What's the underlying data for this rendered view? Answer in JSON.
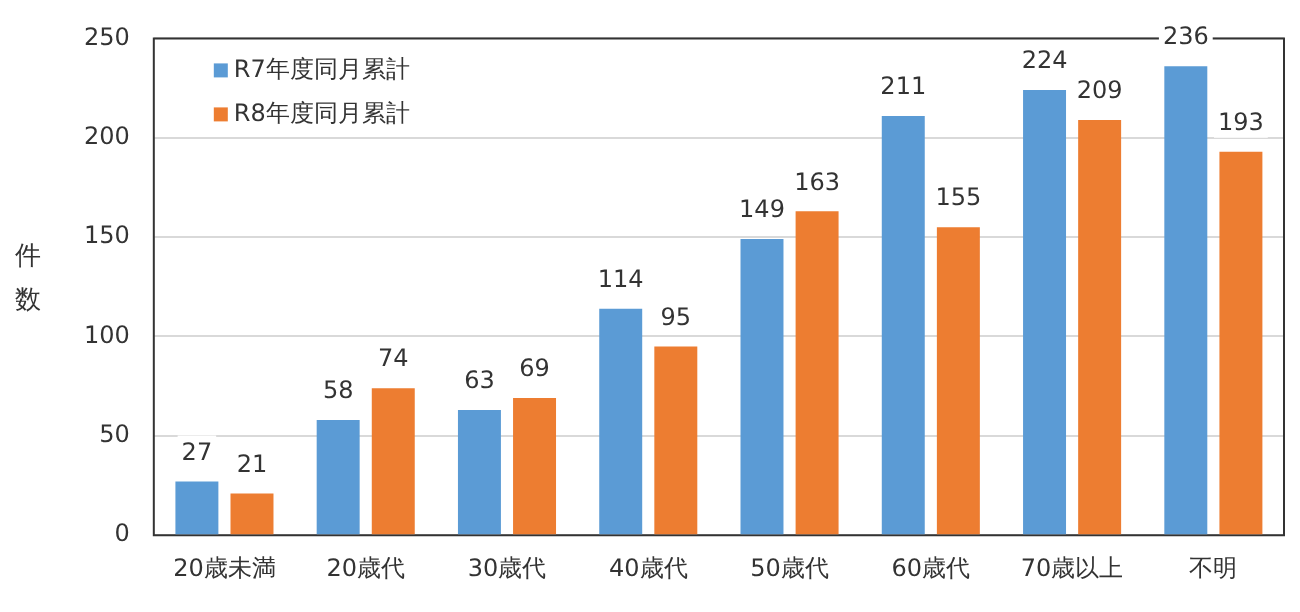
{
  "chart_data": {
    "type": "bar",
    "ylabel": "件数",
    "categories": [
      "20歳未満",
      "20歳代",
      "30歳代",
      "40歳代",
      "50歳代",
      "60歳代",
      "70歳以上",
      "不明"
    ],
    "series": [
      {
        "name": "R7年度同月累計",
        "color": "#5b9bd5",
        "values": [
          27,
          58,
          63,
          114,
          149,
          211,
          224,
          236
        ]
      },
      {
        "name": "R8年度同月累計",
        "color": "#ed7d31",
        "values": [
          21,
          74,
          69,
          95,
          163,
          155,
          209,
          193
        ]
      }
    ],
    "ylim": [
      0,
      250
    ],
    "yticks": [
      0,
      50,
      100,
      150,
      200,
      250
    ],
    "grid": "y",
    "legend": "top left",
    "data_labels": true
  }
}
